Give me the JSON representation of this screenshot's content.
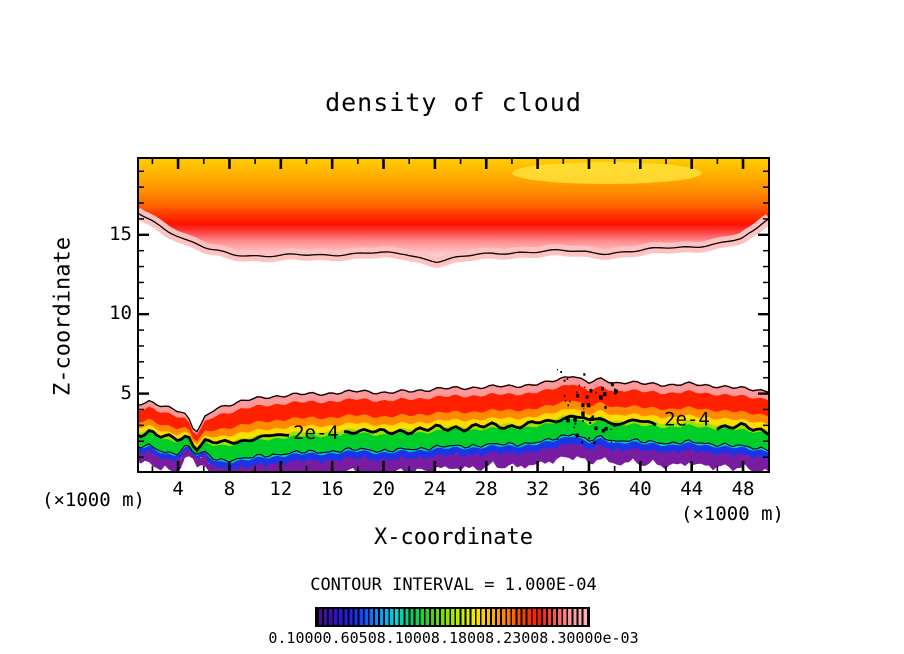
{
  "title": "density of cloud",
  "y_axis": {
    "label": "Z-coordinate",
    "tick_labels": [
      "5",
      "10",
      "15"
    ]
  },
  "x_axis": {
    "label": "X-coordinate",
    "tick_labels": [
      "4",
      "8",
      "12",
      "16",
      "20",
      "24",
      "28",
      "32",
      "36",
      "40",
      "44",
      "48"
    ],
    "unit_left": "(×1000 m)",
    "unit_right": "(×1000 m)"
  },
  "contour_interval_text": "CONTOUR INTERVAL = 1.000E-04",
  "contour_line_labels": [
    "2e-4",
    "2e-4"
  ],
  "colorbar": {
    "label_line": "0.10000.60508.10008.18008.23008.30000e-03",
    "colors_low_to_high": [
      "#4B0B8C",
      "#3A0BC8",
      "#2020F0",
      "#1050FF",
      "#00A0FF",
      "#00D8D0",
      "#00D060",
      "#30D020",
      "#80E000",
      "#C0F000",
      "#FFE800",
      "#FFB400",
      "#FF7800",
      "#FF3C00",
      "#FF1400",
      "#FF5A5A",
      "#FF9C9C",
      "#FFB4B4"
    ]
  },
  "chart_data": {
    "type": "heatmap",
    "title": "density of cloud",
    "xlabel": "X-coordinate",
    "ylabel": "Z-coordinate",
    "x_units": "×1000 m",
    "y_units": "×1000 m",
    "xlim": [
      0.8,
      50.1
    ],
    "ylim": [
      0,
      19.9
    ],
    "x_major_ticks": [
      4,
      8,
      12,
      16,
      20,
      24,
      28,
      32,
      36,
      40,
      44,
      48
    ],
    "x_minor_tick_step": 2,
    "y_major_ticks": [
      5,
      10,
      15
    ],
    "y_minor_tick_step": 1,
    "grid": false,
    "contour_interval": 0.0001,
    "labeled_contours": [
      {
        "value": 0.0002,
        "label": "2e-4",
        "x": 14.7,
        "z": 2.9
      },
      {
        "value": 0.0002,
        "label": "2e-4",
        "x": 43.6,
        "z": 3.2
      }
    ],
    "features": [
      {
        "name": "upper-cloud-band",
        "x_range": [
          0.8,
          50.1
        ],
        "z_range": [
          13.3,
          19.9
        ],
        "description": "filled contour band spanning full width; density rises upward from ~1e-4 (pink, black contour at lower boundary near z=13.5-16) to maximum yellow-orange at the top edge"
      },
      {
        "name": "clear-gap",
        "x_range": [
          0.8,
          50.1
        ],
        "z_range": [
          5.3,
          13.3
        ],
        "description": "white region, density below first contour level"
      },
      {
        "name": "lower-cloud-band",
        "x_range": [
          0.8,
          50.1
        ],
        "z_range": [
          0.5,
          5.3
        ],
        "description": "filled contour band; pink/red maximum near z=4 decreasing downward through orange, yellow (thick 2e-4 contour near z=3), green, blue, purple jagged base near z=1"
      },
      {
        "name": "noisy-contour-cluster",
        "x_range": [
          33,
          38
        ],
        "z_range": [
          1,
          5
        ],
        "description": "speckled black contour fragments embedded in the lower band"
      }
    ],
    "colorbar_range_labels_as_printed": "0.10000.60508.10008.18008.23008.30000e-03"
  }
}
